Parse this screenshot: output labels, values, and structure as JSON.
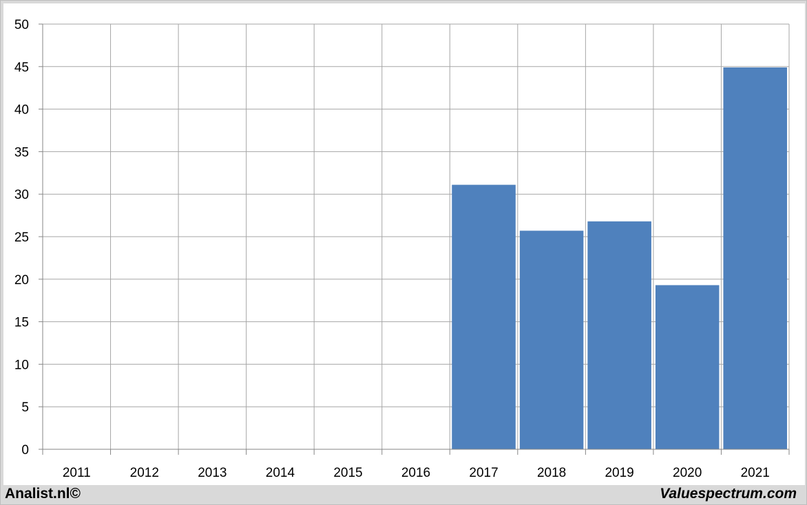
{
  "chart_data": {
    "type": "bar",
    "title": "",
    "xlabel": "",
    "ylabel": "",
    "categories": [
      "2011",
      "2012",
      "2013",
      "2014",
      "2015",
      "2016",
      "2017",
      "2018",
      "2019",
      "2020",
      "2021"
    ],
    "values": [
      null,
      null,
      null,
      null,
      null,
      null,
      31.1,
      25.7,
      26.8,
      19.3,
      44.9
    ],
    "ylim": [
      0,
      50
    ],
    "yticks": [
      "0",
      "5",
      "10",
      "15",
      "20",
      "25",
      "30",
      "35",
      "40",
      "45",
      "50"
    ],
    "grid": true,
    "legend": "none",
    "bar_color": "#4f81bd"
  },
  "footer": {
    "left_text": "Analist.nl©",
    "right_text": "Valuespectrum.com"
  }
}
